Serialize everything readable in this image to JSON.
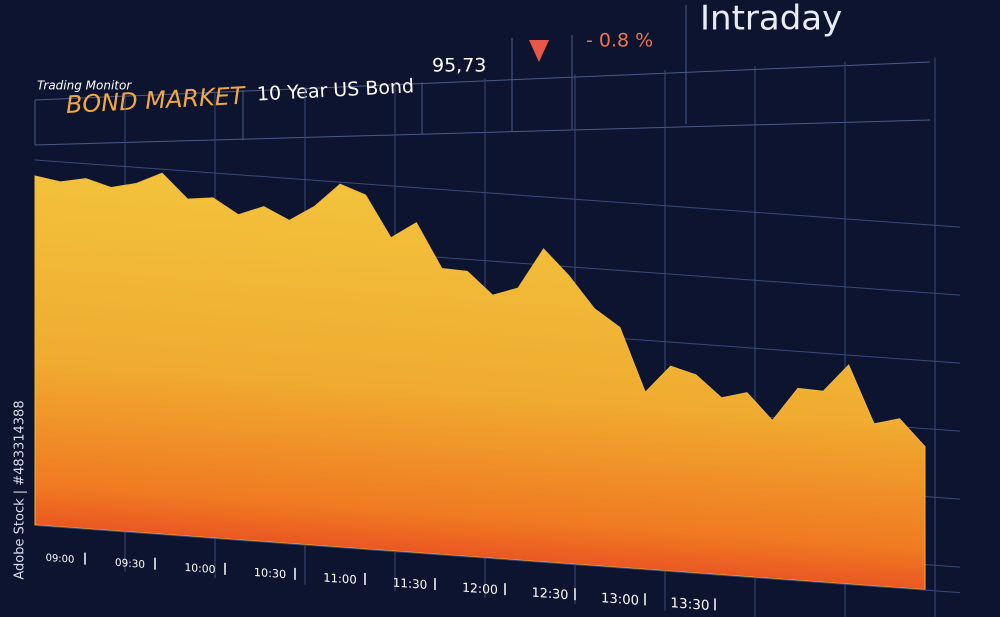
{
  "header": {
    "subtitle": "Trading Monitor",
    "title": "BOND MARKET",
    "instrument": "10 Year US Bond",
    "price": "95,73",
    "change": "- 0.8 %",
    "period": "Intraday"
  },
  "chart_data": {
    "type": "area",
    "x_labels": [
      "09:00",
      "09:30",
      "10:00",
      "10:30",
      "11:00",
      "11:30",
      "12:00",
      "12:30",
      "13:00",
      "13:30"
    ],
    "values": [
      349,
      345,
      350,
      343,
      349,
      361,
      337,
      340,
      325,
      335,
      323,
      339,
      363,
      354,
      313,
      330,
      286,
      285,
      263,
      272,
      313,
      288,
      257,
      240,
      177,
      205,
      198,
      177,
      184,
      158,
      192,
      191,
      219,
      162,
      169,
      143
    ],
    "color": "#f0b83a"
  },
  "watermark": "Adobe Stock | #483314388"
}
